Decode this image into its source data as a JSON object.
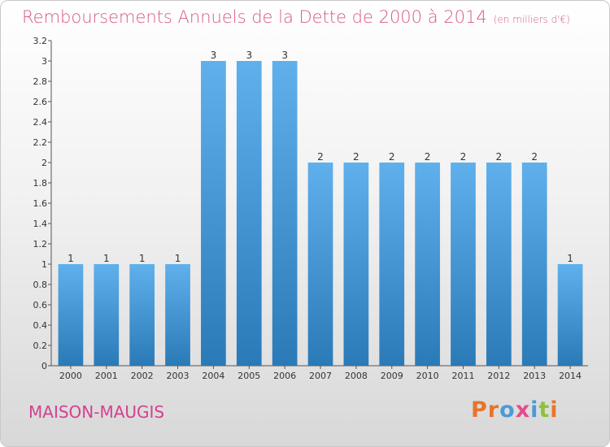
{
  "header": {
    "title": "Remboursements Annuels de la Dette de 2000 à 2014",
    "subtitle": "(en milliers d'€)"
  },
  "footer": {
    "commune": "MAISON-MAUGIS",
    "logo_text": "Proxiti",
    "logo_colors": [
      "#e8742a",
      "#e8742a",
      "#4a9ad8",
      "#e84a8a",
      "#4a9ad8",
      "#8cc23a",
      "#e8742a"
    ]
  },
  "colors": {
    "bar_top": "#5fb0ec",
    "bar_bottom": "#2a7ab8",
    "title": "#d65a8a",
    "commune": "#d44090"
  },
  "chart_data": {
    "type": "bar",
    "categories": [
      "2000",
      "2001",
      "2002",
      "2003",
      "2004",
      "2005",
      "2006",
      "2007",
      "2008",
      "2009",
      "2010",
      "2011",
      "2012",
      "2013",
      "2014"
    ],
    "values": [
      1,
      1,
      1,
      1,
      3,
      3,
      3,
      2,
      2,
      2,
      2,
      2,
      2,
      2,
      1
    ],
    "data_labels": [
      "1",
      "1",
      "1",
      "1",
      "3",
      "3",
      "3",
      "2",
      "2",
      "2",
      "2",
      "2",
      "2",
      "2",
      "1"
    ],
    "title": "Remboursements Annuels de la Dette de 2000 à 2014",
    "subtitle": "(en milliers d'€)",
    "xlabel": "",
    "ylabel": "",
    "ylim": [
      0,
      3.2
    ],
    "yticks": [
      0,
      0.2,
      0.4,
      0.6,
      0.8,
      1,
      1.2,
      1.4,
      1.6,
      1.8,
      2,
      2.2,
      2.4,
      2.6,
      2.8,
      3,
      3.2
    ],
    "ytick_labels": [
      "0",
      "0.2",
      "0.4",
      "0.6",
      "0.8",
      "1",
      "1.2",
      "1.4",
      "1.6",
      "1.8",
      "2",
      "2.2",
      "2.4",
      "2.6",
      "2.8",
      "3",
      "3.2"
    ],
    "grid": false,
    "legend": "none"
  }
}
